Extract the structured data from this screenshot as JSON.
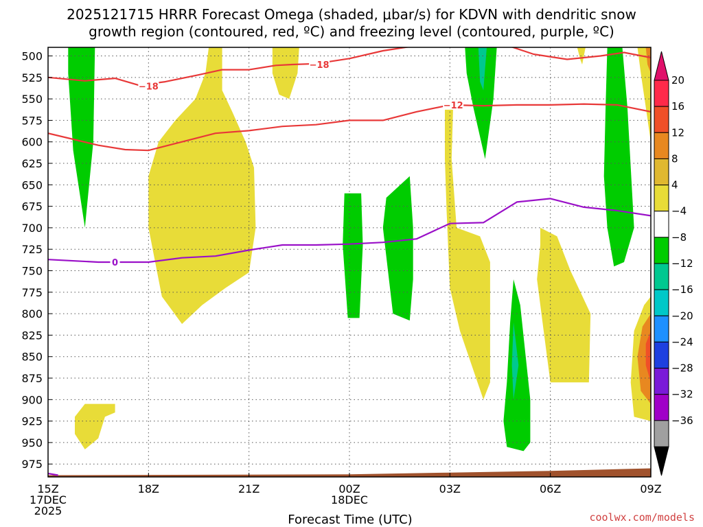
{
  "chart_data": {
    "type": "heatmap",
    "title_line1": "2025121715 HRRR Forecast Omega (shaded, μbar/s) for KDVN with dendritic snow",
    "title_line2": "growth region (contoured, red, ºC) and freezing level (contoured, purple, ºC)",
    "xlabel": "Forecast Time (UTC)",
    "credit": "coolwx.com/models",
    "x_unit": "hours from 15Z 17DEC2025",
    "xlim": [
      0,
      18
    ],
    "ylim": [
      490,
      990
    ],
    "y_ticks": [
      500,
      525,
      550,
      575,
      600,
      625,
      650,
      675,
      700,
      725,
      750,
      775,
      800,
      825,
      850,
      875,
      900,
      925,
      950,
      975
    ],
    "x_ticks": [
      {
        "x": 0,
        "label": "15Z",
        "sub1": "17DEC",
        "sub2": "2025"
      },
      {
        "x": 3,
        "label": "18Z",
        "sub1": "",
        "sub2": ""
      },
      {
        "x": 6,
        "label": "21Z",
        "sub1": "",
        "sub2": ""
      },
      {
        "x": 9,
        "label": "00Z",
        "sub1": "18DEC",
        "sub2": ""
      },
      {
        "x": 12,
        "label": "03Z",
        "sub1": "",
        "sub2": ""
      },
      {
        "x": 15,
        "label": "06Z",
        "sub1": "",
        "sub2": ""
      },
      {
        "x": 18,
        "label": "09Z",
        "sub1": "",
        "sub2": ""
      }
    ],
    "colorbar": {
      "labels": [
        "20",
        "16",
        "12",
        "8",
        "4",
        "−4",
        "−8",
        "−12",
        "−16",
        "−20",
        "−24",
        "−28",
        "−32",
        "−36"
      ],
      "boxes": [
        {
          "color": "#ff2a4a"
        },
        {
          "color": "#f05028"
        },
        {
          "color": "#e88820"
        },
        {
          "color": "#e0b830"
        },
        {
          "color": "#e8dc38"
        },
        {
          "color": "#ffffff"
        },
        {
          "color": "#00cc00"
        },
        {
          "color": "#00c890"
        },
        {
          "color": "#00c8c8"
        },
        {
          "color": "#1e90ff"
        },
        {
          "color": "#1e40e0"
        },
        {
          "color": "#7a1ad8"
        },
        {
          "color": "#a000c8"
        },
        {
          "color": "#a0a0a0"
        }
      ],
      "top_arrow_color": "#e0106a",
      "bottom_arrow_color": "#000000"
    },
    "terrain_color": "#a0522d",
    "terrain": [
      [
        0,
        988
      ],
      [
        9,
        987
      ],
      [
        12,
        985
      ],
      [
        15,
        983
      ],
      [
        18,
        980
      ],
      [
        18,
        990
      ],
      [
        0,
        990
      ]
    ],
    "regions": [
      {
        "name": "green-1",
        "color": "#00cc00",
        "points": [
          [
            0.6,
            490
          ],
          [
            1.4,
            490
          ],
          [
            1.35,
            600
          ],
          [
            1.1,
            700
          ],
          [
            0.75,
            610
          ],
          [
            0.6,
            520
          ]
        ]
      },
      {
        "name": "yellow-1",
        "color": "#e8dc38",
        "points": [
          [
            4.8,
            490
          ],
          [
            5.2,
            490
          ],
          [
            5.2,
            540
          ],
          [
            5.5,
            565
          ],
          [
            5.9,
            600
          ],
          [
            6.15,
            630
          ],
          [
            6.2,
            700
          ],
          [
            6.0,
            752
          ],
          [
            5.3,
            770
          ],
          [
            4.6,
            790
          ],
          [
            4.0,
            812
          ],
          [
            3.4,
            780
          ],
          [
            3.0,
            700
          ],
          [
            3.0,
            640
          ],
          [
            3.3,
            600
          ],
          [
            3.8,
            575
          ],
          [
            4.4,
            550
          ],
          [
            4.7,
            520
          ]
        ]
      },
      {
        "name": "yellow-2",
        "color": "#e8dc38",
        "points": [
          [
            6.7,
            490
          ],
          [
            7.5,
            490
          ],
          [
            7.45,
            520
          ],
          [
            7.2,
            550
          ],
          [
            6.9,
            545
          ],
          [
            6.7,
            520
          ]
        ]
      },
      {
        "name": "yellow-3",
        "color": "#e8dc38",
        "points": [
          [
            0.8,
            920
          ],
          [
            1.1,
            905
          ],
          [
            2.0,
            905
          ],
          [
            2.0,
            915
          ],
          [
            1.7,
            920
          ],
          [
            1.5,
            945
          ],
          [
            1.1,
            958
          ],
          [
            0.8,
            940
          ]
        ]
      },
      {
        "name": "green-2",
        "color": "#00cc00",
        "points": [
          [
            8.85,
            660
          ],
          [
            9.35,
            660
          ],
          [
            9.4,
            720
          ],
          [
            9.3,
            805
          ],
          [
            8.95,
            805
          ],
          [
            8.8,
            720
          ]
        ]
      },
      {
        "name": "green-3",
        "color": "#00cc00",
        "points": [
          [
            10.1,
            665
          ],
          [
            10.8,
            640
          ],
          [
            10.9,
            700
          ],
          [
            10.9,
            760
          ],
          [
            10.8,
            808
          ],
          [
            10.3,
            800
          ],
          [
            10.0,
            700
          ]
        ]
      },
      {
        "name": "yellow-4",
        "color": "#e8dc38",
        "points": [
          [
            11.85,
            555
          ],
          [
            12.1,
            555
          ],
          [
            12.05,
            620
          ],
          [
            12.2,
            700
          ],
          [
            12.9,
            710
          ],
          [
            13.2,
            740
          ],
          [
            13.2,
            880
          ],
          [
            13.0,
            900
          ],
          [
            12.3,
            820
          ],
          [
            12.0,
            770
          ],
          [
            11.9,
            680
          ],
          [
            11.85,
            620
          ]
        ]
      },
      {
        "name": "green-4",
        "color": "#00cc00",
        "points": [
          [
            12.45,
            490
          ],
          [
            13.4,
            490
          ],
          [
            13.3,
            550
          ],
          [
            13.05,
            620
          ],
          [
            12.7,
            560
          ],
          [
            12.5,
            520
          ]
        ]
      },
      {
        "name": "teal-1",
        "color": "#00c890",
        "points": [
          [
            12.85,
            490
          ],
          [
            13.1,
            490
          ],
          [
            13.0,
            540
          ],
          [
            12.9,
            530
          ]
        ]
      },
      {
        "name": "yellow-5",
        "color": "#e8dc38",
        "points": [
          [
            14.7,
            700
          ],
          [
            15.2,
            710
          ],
          [
            15.6,
            750
          ],
          [
            16.2,
            800
          ],
          [
            16.15,
            880
          ],
          [
            15.0,
            880
          ],
          [
            14.8,
            820
          ],
          [
            14.6,
            760
          ],
          [
            14.7,
            720
          ]
        ]
      },
      {
        "name": "green-5",
        "color": "#00cc00",
        "points": [
          [
            13.9,
            760
          ],
          [
            14.1,
            790
          ],
          [
            14.4,
            900
          ],
          [
            14.4,
            950
          ],
          [
            14.2,
            960
          ],
          [
            13.7,
            955
          ],
          [
            13.6,
            925
          ],
          [
            13.7,
            880
          ],
          [
            13.8,
            810
          ]
        ]
      },
      {
        "name": "teal-2",
        "color": "#00c890",
        "points": [
          [
            13.9,
            810
          ],
          [
            14.05,
            860
          ],
          [
            13.9,
            900
          ],
          [
            13.85,
            860
          ]
        ]
      },
      {
        "name": "yellow-6",
        "color": "#e8dc38",
        "points": [
          [
            15.8,
            490
          ],
          [
            16.05,
            490
          ],
          [
            15.95,
            510
          ],
          [
            15.9,
            505
          ]
        ]
      },
      {
        "name": "green-6",
        "color": "#00cc00",
        "points": [
          [
            16.7,
            490
          ],
          [
            17.15,
            490
          ],
          [
            17.3,
            560
          ],
          [
            17.5,
            700
          ],
          [
            17.2,
            740
          ],
          [
            16.9,
            745
          ],
          [
            16.7,
            700
          ],
          [
            16.6,
            640
          ],
          [
            16.65,
            560
          ]
        ]
      },
      {
        "name": "yellow-7",
        "color": "#e8dc38",
        "points": [
          [
            17.6,
            490
          ],
          [
            18,
            490
          ],
          [
            18,
            600
          ],
          [
            17.85,
            560
          ],
          [
            17.7,
            520
          ]
        ]
      },
      {
        "name": "orange-1",
        "color": "#e88820",
        "points": [
          [
            17.85,
            490
          ],
          [
            18,
            490
          ],
          [
            18,
            520
          ],
          [
            17.9,
            510
          ]
        ]
      },
      {
        "name": "yellow-8",
        "color": "#e8dc38",
        "points": [
          [
            18,
            780
          ],
          [
            18,
            925
          ],
          [
            17.5,
            920
          ],
          [
            17.4,
            880
          ],
          [
            17.5,
            820
          ],
          [
            17.8,
            790
          ]
        ]
      },
      {
        "name": "orange-2",
        "color": "#e88820",
        "points": [
          [
            18,
            800
          ],
          [
            18,
            905
          ],
          [
            17.7,
            890
          ],
          [
            17.6,
            850
          ],
          [
            17.75,
            815
          ]
        ]
      },
      {
        "name": "red-1",
        "color": "#f05028",
        "points": [
          [
            18,
            820
          ],
          [
            18,
            880
          ],
          [
            17.85,
            860
          ],
          [
            17.85,
            835
          ]
        ]
      }
    ],
    "contours": [
      {
        "name": "contour-minus18",
        "label": "−18",
        "color": "#e83838",
        "points": [
          [
            0,
            525
          ],
          [
            1.1,
            529
          ],
          [
            2.0,
            526
          ],
          [
            2.7,
            534
          ],
          [
            3.5,
            530
          ],
          [
            4.5,
            522
          ],
          [
            5.2,
            516
          ],
          [
            6.0,
            516
          ],
          [
            6.8,
            511
          ],
          [
            7.3,
            510
          ],
          [
            8.0,
            509
          ],
          [
            9.0,
            503
          ],
          [
            10.0,
            494
          ],
          [
            11.0,
            488
          ],
          [
            12.0,
            485
          ]
        ],
        "label_at": [
          3.0,
          535
        ],
        "label2": "−18",
        "label2_at": [
          8.1,
          510
        ]
      },
      {
        "name": "contour-minus18-b",
        "label": "",
        "color": "#e83838",
        "points": [
          [
            13.5,
            485
          ],
          [
            14.5,
            498
          ],
          [
            15.5,
            504
          ],
          [
            16.5,
            500
          ],
          [
            17.2,
            496
          ],
          [
            18.0,
            502
          ]
        ],
        "label_at": null,
        "label2": "",
        "label2_at": null
      },
      {
        "name": "contour-minus12",
        "label": "−12",
        "color": "#e83838",
        "points": [
          [
            0,
            590
          ],
          [
            1.5,
            604
          ],
          [
            2.3,
            609
          ],
          [
            3.0,
            610
          ],
          [
            4.0,
            600
          ],
          [
            5.0,
            590
          ],
          [
            6.0,
            587
          ],
          [
            7.0,
            582
          ],
          [
            8.0,
            580
          ],
          [
            9.0,
            575
          ],
          [
            10.0,
            575
          ],
          [
            11.0,
            565
          ],
          [
            12.0,
            557
          ],
          [
            13.0,
            558
          ],
          [
            14.0,
            557
          ],
          [
            15.0,
            557
          ],
          [
            16.0,
            556
          ],
          [
            17.0,
            557
          ],
          [
            18.0,
            565
          ]
        ],
        "label_at": [
          12.1,
          557
        ]
      },
      {
        "name": "contour-0",
        "label": "0",
        "color": "#9a10c8",
        "points": [
          [
            0,
            737
          ],
          [
            1.5,
            740
          ],
          [
            3.0,
            740
          ],
          [
            4.0,
            735
          ],
          [
            5.0,
            733
          ],
          [
            6.0,
            726
          ],
          [
            7.0,
            720
          ],
          [
            8.0,
            720
          ],
          [
            9.0,
            719
          ],
          [
            10.0,
            717
          ],
          [
            11.0,
            713
          ],
          [
            12.0,
            695
          ],
          [
            13.0,
            694
          ],
          [
            14.0,
            670
          ],
          [
            15.0,
            666
          ],
          [
            16.0,
            676
          ],
          [
            17.0,
            680
          ],
          [
            18.0,
            686
          ]
        ],
        "label_at": [
          2.0,
          740
        ]
      },
      {
        "name": "contour-0-bottom",
        "label": "",
        "color": "#9a10c8",
        "points": [
          [
            0,
            986
          ],
          [
            0.3,
            988
          ]
        ],
        "label_at": null
      }
    ]
  }
}
